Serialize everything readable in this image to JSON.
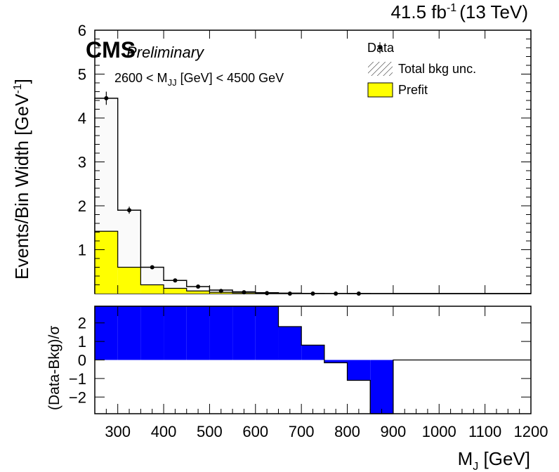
{
  "header": {
    "lumi_label": "41.5 fb",
    "lumi_exp": "-1",
    "energy_label": "(13 TeV)",
    "cms_label": "CMS",
    "preliminary_label": "Preliminary",
    "selection_pre": "2600 < M",
    "selection_sub": "JJ",
    "selection_post": " [GeV] < 4500 GeV"
  },
  "legend": {
    "data_label": "Data",
    "unc_label": "Total bkg unc.",
    "prefit_label": "Prefit",
    "prefit_color": "#ffff00"
  },
  "chart_data": [
    {
      "type": "bar",
      "panel": "main",
      "bin_edges": [
        250,
        300,
        350,
        400,
        450,
        500,
        550,
        600,
        650,
        700,
        750,
        800,
        850,
        900,
        950,
        1000,
        1050,
        1100,
        1150,
        1200
      ],
      "series": [
        {
          "name": "Data",
          "style": "points",
          "x": [
            275,
            325,
            375,
            425,
            475,
            525,
            575,
            625,
            675,
            725,
            775,
            825
          ],
          "values": [
            4.45,
            1.9,
            0.6,
            0.3,
            0.16,
            0.06,
            0.03,
            0.01,
            0.0,
            0.0,
            0.0,
            0.0
          ],
          "errors": [
            0.15,
            0.08,
            0.04,
            0.03,
            0.02,
            0.01,
            0.01,
            0.005,
            0.0,
            0.0,
            0.0,
            0.0
          ]
        },
        {
          "name": "Total bkg unc.",
          "style": "step",
          "values": [
            4.45,
            1.9,
            0.6,
            0.3,
            0.16,
            0.08,
            0.04,
            0.02,
            0.01,
            0.005,
            0.003,
            0.002,
            0.001,
            0,
            0,
            0,
            0,
            0,
            0
          ]
        },
        {
          "name": "Prefit",
          "style": "filled-step",
          "values": [
            1.42,
            0.6,
            0.2,
            0.12,
            0.06,
            0.03,
            0.015,
            0.008,
            0.004,
            0.002,
            0.001,
            0,
            0,
            0,
            0,
            0,
            0,
            0,
            0
          ]
        }
      ],
      "xlim": [
        250,
        1200
      ],
      "ylim": [
        0,
        6
      ],
      "yticks": [
        1,
        2,
        3,
        4,
        5,
        6
      ],
      "ylabel": "Events/Bin Width [GeV",
      "ylabel_exp": "-1",
      "ylabel_close": "]"
    },
    {
      "type": "bar",
      "panel": "ratio",
      "bin_edges": [
        250,
        300,
        350,
        400,
        450,
        500,
        550,
        600,
        650,
        700,
        750,
        800,
        850,
        900
      ],
      "values": [
        2.9,
        2.9,
        2.9,
        2.9,
        2.9,
        2.9,
        2.9,
        2.9,
        1.8,
        0.8,
        -0.15,
        -1.1,
        -2.9
      ],
      "color": "#0000ff",
      "xlim": [
        250,
        1200
      ],
      "ylim": [
        -2.9,
        2.9
      ],
      "yticks": [
        -2,
        -1,
        0,
        1,
        2
      ],
      "xticks": [
        300,
        400,
        500,
        600,
        700,
        800,
        900,
        1000,
        1100,
        1200
      ],
      "ylabel": "(Data-Bkg)/σ",
      "xlabel": "M",
      "xlabel_sub": "J",
      "xlabel_post": " [GeV]"
    }
  ]
}
